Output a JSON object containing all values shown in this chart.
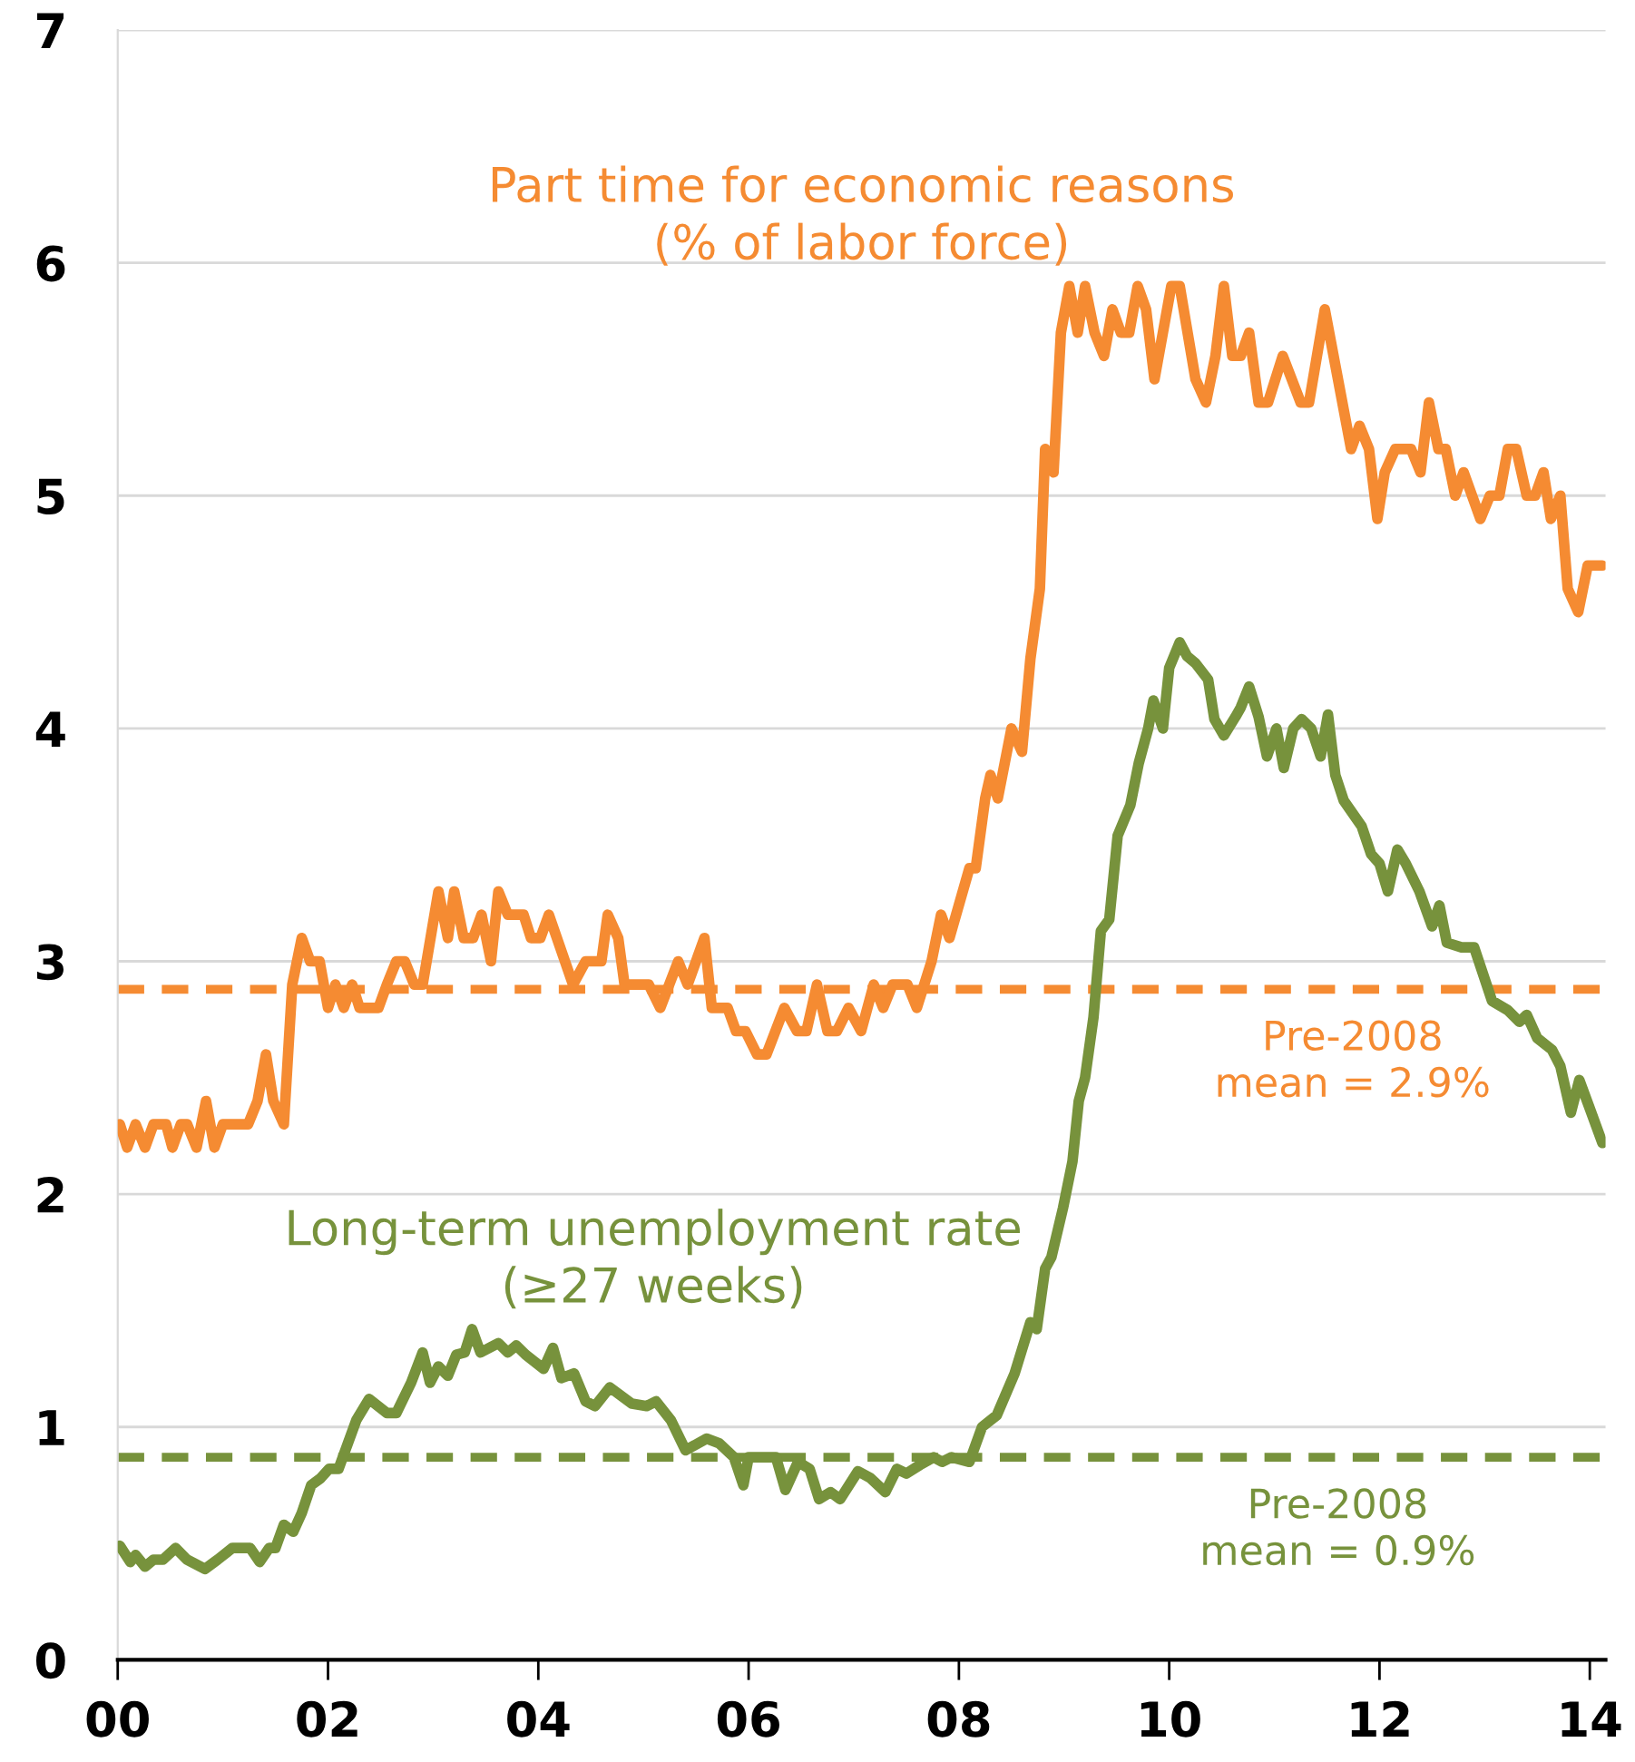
{
  "chart_data": {
    "type": "line",
    "xlim": [
      0,
      14.15
    ],
    "ylim": [
      0,
      7
    ],
    "xticks": [
      {
        "value": 0,
        "label": "00"
      },
      {
        "value": 2,
        "label": "02"
      },
      {
        "value": 4,
        "label": "04"
      },
      {
        "value": 6,
        "label": "06"
      },
      {
        "value": 8,
        "label": "08"
      },
      {
        "value": 10,
        "label": "10"
      },
      {
        "value": 12,
        "label": "12"
      },
      {
        "value": 14,
        "label": "14"
      }
    ],
    "yticks": [
      0,
      1,
      2,
      3,
      4,
      5,
      6,
      7
    ],
    "grid": "y",
    "legend": false,
    "line_style": "solid",
    "marker": "none",
    "series": [
      {
        "name": "Part time for economic reasons\n(% of labor force)",
        "color": "#f58b32",
        "x": [
          0.02,
          0.09,
          0.17,
          0.26,
          0.34,
          0.46,
          0.52,
          0.6,
          0.66,
          0.75,
          0.84,
          0.92,
          1.0,
          1.24,
          1.33,
          1.41,
          1.48,
          1.58,
          1.66,
          1.75,
          1.83,
          1.92,
          2.0,
          2.07,
          2.15,
          2.23,
          2.3,
          2.48,
          2.56,
          2.65,
          2.73,
          2.82,
          2.9,
          3.05,
          3.14,
          3.2,
          3.29,
          3.38,
          3.46,
          3.55,
          3.62,
          3.71,
          3.86,
          3.93,
          4.02,
          4.1,
          4.33,
          4.45,
          4.6,
          4.66,
          4.76,
          4.82,
          5.05,
          5.16,
          5.33,
          5.42,
          5.58,
          5.65,
          5.8,
          5.88,
          5.97,
          6.08,
          6.17,
          6.34,
          6.46,
          6.55,
          6.65,
          6.75,
          6.84,
          6.95,
          7.07,
          7.19,
          7.28,
          7.37,
          7.51,
          7.6,
          7.74,
          7.83,
          7.91,
          8.1,
          8.16,
          8.25,
          8.3,
          8.37,
          8.5,
          8.6,
          8.68,
          8.77,
          8.82,
          8.9,
          8.97,
          9.05,
          9.13,
          9.2,
          9.29,
          9.38,
          9.46,
          9.54,
          9.62,
          9.7,
          9.78,
          9.86,
          10.02,
          10.1,
          10.25,
          10.35,
          10.44,
          10.52,
          10.6,
          10.68,
          10.76,
          10.85,
          10.94,
          11.08,
          11.25,
          11.33,
          11.48,
          11.73,
          11.81,
          11.9,
          11.98,
          12.05,
          12.15,
          12.3,
          12.39,
          12.47,
          12.56,
          12.63,
          12.72,
          12.8,
          12.96,
          13.05,
          13.14,
          13.22,
          13.3,
          13.4,
          13.48,
          13.56,
          13.63,
          13.72,
          13.79,
          13.89,
          13.98,
          14.12
        ],
        "values": [
          2.3,
          2.2,
          2.3,
          2.2,
          2.3,
          2.3,
          2.2,
          2.3,
          2.3,
          2.2,
          2.4,
          2.2,
          2.3,
          2.3,
          2.4,
          2.6,
          2.4,
          2.3,
          2.9,
          3.1,
          3.0,
          3.0,
          2.8,
          2.9,
          2.8,
          2.9,
          2.8,
          2.8,
          2.9,
          3.0,
          3.0,
          2.9,
          2.9,
          3.3,
          3.1,
          3.3,
          3.1,
          3.1,
          3.2,
          3.0,
          3.3,
          3.2,
          3.2,
          3.1,
          3.1,
          3.2,
          2.9,
          3.0,
          3.0,
          3.2,
          3.1,
          2.9,
          2.9,
          2.8,
          3.0,
          2.9,
          3.1,
          2.8,
          2.8,
          2.7,
          2.7,
          2.6,
          2.6,
          2.8,
          2.7,
          2.7,
          2.9,
          2.7,
          2.7,
          2.8,
          2.7,
          2.9,
          2.8,
          2.9,
          2.9,
          2.8,
          3.0,
          3.2,
          3.1,
          3.4,
          3.4,
          3.7,
          3.8,
          3.7,
          4.0,
          3.9,
          4.3,
          4.6,
          5.2,
          5.1,
          5.7,
          5.9,
          5.7,
          5.9,
          5.7,
          5.6,
          5.8,
          5.7,
          5.7,
          5.9,
          5.8,
          5.5,
          5.9,
          5.9,
          5.5,
          5.4,
          5.6,
          5.9,
          5.6,
          5.6,
          5.7,
          5.4,
          5.4,
          5.6,
          5.4,
          5.4,
          5.8,
          5.2,
          5.3,
          5.2,
          4.9,
          5.1,
          5.2,
          5.2,
          5.1,
          5.4,
          5.2,
          5.2,
          5.0,
          5.1,
          4.9,
          5.0,
          5.0,
          5.2,
          5.2,
          5.0,
          5.0,
          5.1,
          4.9,
          5.0,
          4.6,
          4.5,
          4.7,
          4.7
        ]
      },
      {
        "name": "Long-term unemployment rate\n(≥27 weeks)",
        "color": "#77923c",
        "x": [
          0.02,
          0.12,
          0.17,
          0.26,
          0.34,
          0.43,
          0.55,
          0.66,
          0.83,
          0.95,
          1.09,
          1.26,
          1.35,
          1.44,
          1.5,
          1.58,
          1.67,
          1.75,
          1.84,
          1.93,
          2.01,
          2.1,
          2.27,
          2.39,
          2.56,
          2.65,
          2.79,
          2.9,
          2.97,
          3.05,
          3.14,
          3.22,
          3.3,
          3.37,
          3.45,
          3.62,
          3.71,
          3.79,
          3.88,
          4.05,
          4.14,
          4.22,
          4.34,
          4.45,
          4.54,
          4.68,
          4.89,
          5.03,
          5.12,
          5.26,
          5.4,
          5.6,
          5.72,
          5.86,
          5.95,
          6.0,
          6.18,
          6.26,
          6.35,
          6.47,
          6.58,
          6.67,
          6.78,
          6.87,
          7.04,
          7.16,
          7.3,
          7.41,
          7.5,
          7.64,
          7.76,
          7.84,
          7.93,
          8.1,
          8.22,
          8.36,
          8.53,
          8.68,
          8.74,
          8.82,
          8.88,
          8.99,
          9.08,
          9.14,
          9.2,
          9.28,
          9.35,
          9.43,
          9.51,
          9.63,
          9.71,
          9.8,
          9.85,
          9.94,
          10.0,
          10.1,
          10.17,
          10.25,
          10.37,
          10.43,
          10.52,
          10.63,
          10.68,
          10.76,
          10.85,
          10.93,
          11.02,
          11.09,
          11.18,
          11.26,
          11.35,
          11.44,
          11.51,
          11.58,
          11.66,
          11.83,
          11.92,
          12.0,
          12.08,
          12.17,
          12.25,
          12.38,
          12.5,
          12.57,
          12.64,
          12.78,
          12.9,
          13.07,
          13.22,
          13.33,
          13.4,
          13.5,
          13.64,
          13.72,
          13.82,
          13.9,
          13.99,
          14.12
        ],
        "values": [
          0.49,
          0.42,
          0.45,
          0.4,
          0.43,
          0.43,
          0.48,
          0.43,
          0.39,
          0.43,
          0.48,
          0.48,
          0.42,
          0.48,
          0.48,
          0.58,
          0.55,
          0.63,
          0.75,
          0.78,
          0.82,
          0.82,
          1.03,
          1.12,
          1.06,
          1.06,
          1.19,
          1.32,
          1.19,
          1.26,
          1.22,
          1.31,
          1.32,
          1.42,
          1.32,
          1.36,
          1.32,
          1.35,
          1.31,
          1.25,
          1.34,
          1.21,
          1.23,
          1.11,
          1.09,
          1.17,
          1.1,
          1.09,
          1.11,
          1.03,
          0.9,
          0.95,
          0.93,
          0.87,
          0.75,
          0.87,
          0.87,
          0.87,
          0.73,
          0.85,
          0.82,
          0.69,
          0.72,
          0.69,
          0.81,
          0.78,
          0.72,
          0.82,
          0.8,
          0.84,
          0.87,
          0.85,
          0.87,
          0.85,
          1.0,
          1.05,
          1.23,
          1.45,
          1.42,
          1.68,
          1.73,
          1.94,
          2.14,
          2.4,
          2.5,
          2.76,
          3.13,
          3.18,
          3.54,
          3.67,
          3.85,
          4.0,
          4.12,
          4.0,
          4.26,
          4.37,
          4.31,
          4.28,
          4.21,
          4.04,
          3.97,
          4.05,
          4.09,
          4.18,
          4.05,
          3.88,
          4.0,
          3.83,
          4.0,
          4.04,
          4.0,
          3.88,
          4.06,
          3.8,
          3.69,
          3.58,
          3.46,
          3.42,
          3.3,
          3.48,
          3.42,
          3.3,
          3.15,
          3.24,
          3.08,
          3.06,
          3.06,
          2.83,
          2.79,
          2.74,
          2.77,
          2.67,
          2.62,
          2.55,
          2.35,
          2.49,
          2.38,
          2.22
        ]
      }
    ],
    "ref_lines": [
      {
        "axis": "y",
        "value": 2.88,
        "label": "Pre-2008\nmean = 2.9%",
        "color": "#f58b32",
        "line_style": "dashed"
      },
      {
        "axis": "y",
        "value": 0.87,
        "label": "Pre-2008\nmean = 0.9%",
        "color": "#77923c",
        "line_style": "dashed"
      }
    ]
  }
}
